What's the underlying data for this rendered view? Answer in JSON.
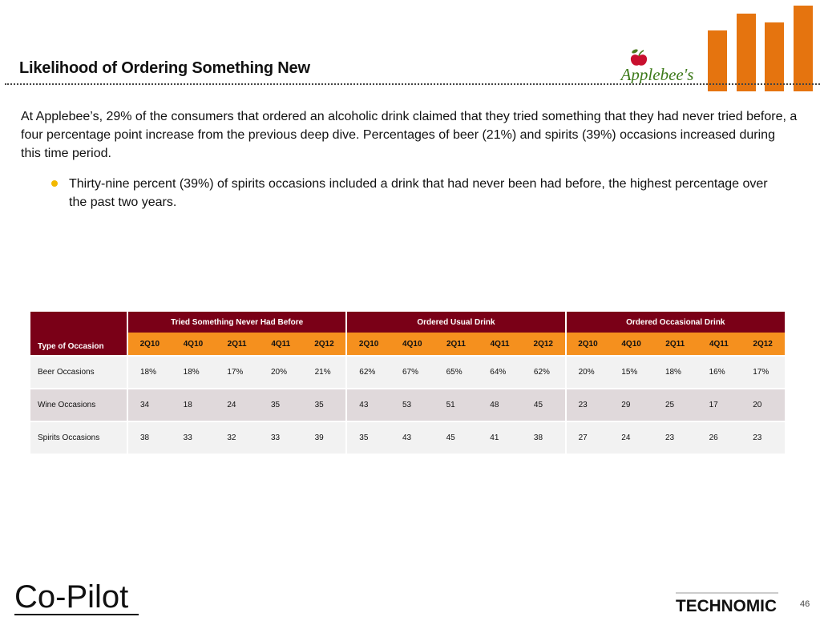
{
  "page": {
    "title": "Likelihood of Ordering Something New",
    "paragraph": "At Applebee’s, 29% of the consumers that ordered an alcoholic drink claimed that they tried something that they had never tried before, a four percentage point increase from the previous deep dive. Percentages of beer (21%) and spirits (39%) occasions increased during this time period.",
    "bullet": "Thirty-nine percent (39%) of spirits occasions included a drink that had never been had before, the highest percentage over the past two years.",
    "page_number": "46"
  },
  "logos": {
    "applebees": "Applebee's",
    "copilot": "Co-Pilot",
    "technomic": "TECHNOMIC"
  },
  "colors": {
    "accent_orange": "#e5740f",
    "header_maroon": "#7a0017",
    "subheader_orange": "#f5901e",
    "bullet_yellow": "#f2b800"
  },
  "table": {
    "type_header": "Type of Occasion",
    "groups": [
      "Tried Something Never Had Before",
      "Ordered Usual Drink",
      "Ordered Occasional Drink"
    ],
    "periods": [
      "2Q10",
      "4Q10",
      "2Q11",
      "4Q11",
      "2Q12"
    ],
    "rows": [
      {
        "label": "Beer Occasions",
        "values": [
          "18%",
          "18%",
          "17%",
          "20%",
          "21%",
          "62%",
          "67%",
          "65%",
          "64%",
          "62%",
          "20%",
          "15%",
          "18%",
          "16%",
          "17%"
        ]
      },
      {
        "label": "Wine Occasions",
        "values": [
          "34",
          "18",
          "24",
          "35",
          "35",
          "43",
          "53",
          "51",
          "48",
          "45",
          "23",
          "29",
          "25",
          "17",
          "20"
        ]
      },
      {
        "label": "Spirits Occasions",
        "values": [
          "38",
          "33",
          "32",
          "33",
          "39",
          "35",
          "43",
          "45",
          "41",
          "38",
          "27",
          "24",
          "23",
          "26",
          "23"
        ]
      }
    ]
  }
}
